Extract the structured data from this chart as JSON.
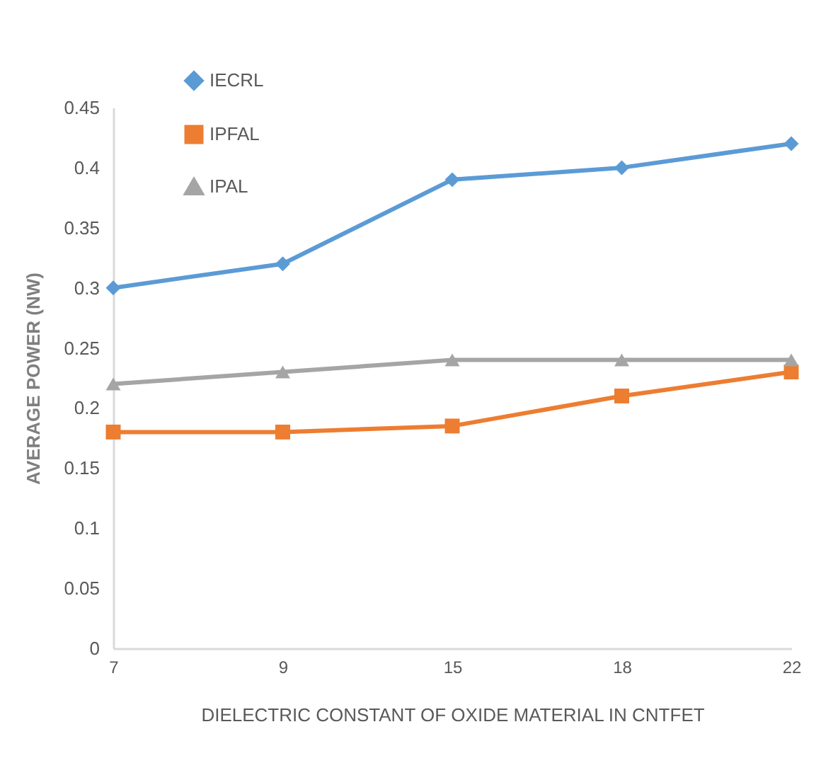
{
  "chart_data": {
    "type": "line",
    "categories": [
      "7",
      "9",
      "15",
      "18",
      "22"
    ],
    "xlabel": "DIELECTRIC CONSTANT OF OXIDE MATERIAL IN CNTFET",
    "ylabel": "AVERAGE POWER (NW)",
    "ylim": [
      0,
      0.45
    ],
    "yticks": [
      0,
      0.05,
      0.1,
      0.15,
      0.2,
      0.25,
      0.3,
      0.35,
      0.4,
      0.45
    ],
    "legend": "top left",
    "grid": false,
    "line_style": "solid",
    "series": [
      {
        "name": "IECRL",
        "color": "#5b9bd5",
        "marker": "diamond",
        "values": [
          0.3,
          0.32,
          0.39,
          0.4,
          0.42
        ]
      },
      {
        "name": "IPFAL",
        "color": "#ed7d31",
        "marker": "square",
        "values": [
          0.18,
          0.18,
          0.185,
          0.21,
          0.23
        ]
      },
      {
        "name": "IPAL",
        "color": "#a5a5a5",
        "marker": "triangle",
        "values": [
          0.22,
          0.23,
          0.24,
          0.24,
          0.24
        ]
      }
    ]
  }
}
